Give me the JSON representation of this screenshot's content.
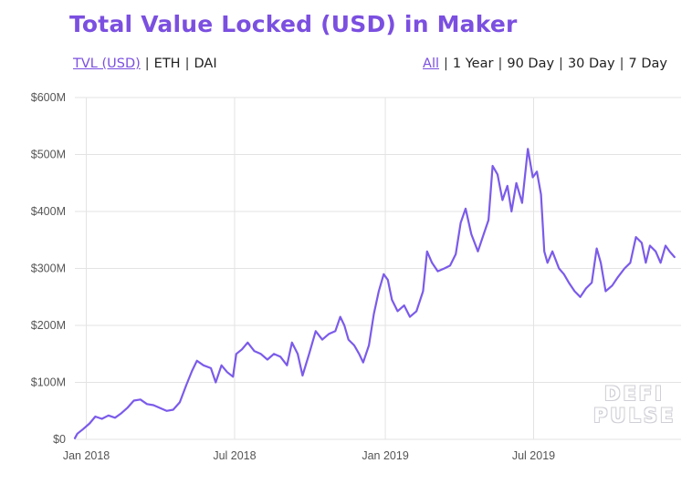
{
  "title": "Total Value Locked (USD) in Maker",
  "metric_toggles": [
    {
      "label": "TVL (USD)",
      "active": true
    },
    {
      "label": "ETH",
      "active": false
    },
    {
      "label": "DAI",
      "active": false
    }
  ],
  "range_toggles": [
    {
      "label": "All",
      "active": true
    },
    {
      "label": "1 Year",
      "active": false
    },
    {
      "label": "90 Day",
      "active": false
    },
    {
      "label": "30 Day",
      "active": false
    },
    {
      "label": "7 Day",
      "active": false
    }
  ],
  "separator": "|",
  "watermark": {
    "line1": "DEFI",
    "line2": "PULSE"
  },
  "colors": {
    "accent": "#7B4FE0",
    "line": "#7B5BEA",
    "grid": "#e3e3e3"
  },
  "chart_data": {
    "type": "line",
    "title": "Total Value Locked (USD) in Maker",
    "xlabel": "",
    "ylabel": "",
    "ylim": [
      0,
      600
    ],
    "xlim": [
      "2017-12-18",
      "2019-12-28"
    ],
    "grid": true,
    "y_ticks": [
      {
        "value": 0,
        "label": "$0"
      },
      {
        "value": 100,
        "label": "$100M"
      },
      {
        "value": 200,
        "label": "$200M"
      },
      {
        "value": 300,
        "label": "$300M"
      },
      {
        "value": 400,
        "label": "$400M"
      },
      {
        "value": 500,
        "label": "$500M"
      },
      {
        "value": 600,
        "label": "$600M"
      }
    ],
    "x_ticks": [
      {
        "value": "2018-01-01",
        "label": "Jan 2018"
      },
      {
        "value": "2018-07-01",
        "label": "Jul 2018"
      },
      {
        "value": "2019-01-01",
        "label": "Jan 2019"
      },
      {
        "value": "2019-07-01",
        "label": "Jul 2019"
      }
    ],
    "series": [
      {
        "name": "",
        "points": [
          [
            "2017-12-18",
            2
          ],
          [
            "2017-12-21",
            10
          ],
          [
            "2017-12-28",
            18
          ],
          [
            "2018-01-05",
            28
          ],
          [
            "2018-01-12",
            40
          ],
          [
            "2018-01-20",
            36
          ],
          [
            "2018-01-28",
            42
          ],
          [
            "2018-02-05",
            38
          ],
          [
            "2018-02-12",
            45
          ],
          [
            "2018-02-20",
            55
          ],
          [
            "2018-02-28",
            68
          ],
          [
            "2018-03-08",
            70
          ],
          [
            "2018-03-16",
            62
          ],
          [
            "2018-03-24",
            60
          ],
          [
            "2018-04-01",
            55
          ],
          [
            "2018-04-09",
            50
          ],
          [
            "2018-04-17",
            52
          ],
          [
            "2018-04-25",
            65
          ],
          [
            "2018-05-03",
            95
          ],
          [
            "2018-05-10",
            120
          ],
          [
            "2018-05-16",
            138
          ],
          [
            "2018-05-24",
            130
          ],
          [
            "2018-06-02",
            125
          ],
          [
            "2018-06-08",
            100
          ],
          [
            "2018-06-15",
            130
          ],
          [
            "2018-06-22",
            118
          ],
          [
            "2018-06-29",
            110
          ],
          [
            "2018-07-03",
            150
          ],
          [
            "2018-07-10",
            158
          ],
          [
            "2018-07-17",
            170
          ],
          [
            "2018-07-25",
            155
          ],
          [
            "2018-08-02",
            150
          ],
          [
            "2018-08-10",
            140
          ],
          [
            "2018-08-18",
            150
          ],
          [
            "2018-08-26",
            145
          ],
          [
            "2018-09-03",
            130
          ],
          [
            "2018-09-09",
            170
          ],
          [
            "2018-09-16",
            150
          ],
          [
            "2018-09-22",
            112
          ],
          [
            "2018-09-30",
            150
          ],
          [
            "2018-10-08",
            190
          ],
          [
            "2018-10-16",
            175
          ],
          [
            "2018-10-24",
            185
          ],
          [
            "2018-11-01",
            190
          ],
          [
            "2018-11-07",
            215
          ],
          [
            "2018-11-12",
            200
          ],
          [
            "2018-11-17",
            175
          ],
          [
            "2018-11-24",
            165
          ],
          [
            "2018-11-30",
            150
          ],
          [
            "2018-12-05",
            135
          ],
          [
            "2018-12-12",
            165
          ],
          [
            "2018-12-18",
            220
          ],
          [
            "2018-12-24",
            260
          ],
          [
            "2018-12-30",
            290
          ],
          [
            "2019-01-04",
            280
          ],
          [
            "2019-01-09",
            245
          ],
          [
            "2019-01-16",
            225
          ],
          [
            "2019-01-24",
            235
          ],
          [
            "2019-01-31",
            215
          ],
          [
            "2019-02-08",
            225
          ],
          [
            "2019-02-16",
            260
          ],
          [
            "2019-02-21",
            330
          ],
          [
            "2019-02-27",
            310
          ],
          [
            "2019-03-06",
            295
          ],
          [
            "2019-03-14",
            300
          ],
          [
            "2019-03-21",
            305
          ],
          [
            "2019-03-28",
            325
          ],
          [
            "2019-04-03",
            380
          ],
          [
            "2019-04-09",
            405
          ],
          [
            "2019-04-16",
            360
          ],
          [
            "2019-04-24",
            330
          ],
          [
            "2019-05-01",
            360
          ],
          [
            "2019-05-07",
            385
          ],
          [
            "2019-05-12",
            480
          ],
          [
            "2019-05-18",
            465
          ],
          [
            "2019-05-24",
            420
          ],
          [
            "2019-05-30",
            445
          ],
          [
            "2019-06-04",
            400
          ],
          [
            "2019-06-10",
            450
          ],
          [
            "2019-06-17",
            415
          ],
          [
            "2019-06-24",
            510
          ],
          [
            "2019-06-30",
            460
          ],
          [
            "2019-07-05",
            470
          ],
          [
            "2019-07-10",
            430
          ],
          [
            "2019-07-14",
            330
          ],
          [
            "2019-07-18",
            310
          ],
          [
            "2019-07-24",
            330
          ],
          [
            "2019-08-01",
            300
          ],
          [
            "2019-08-07",
            290
          ],
          [
            "2019-08-13",
            275
          ],
          [
            "2019-08-20",
            260
          ],
          [
            "2019-08-27",
            250
          ],
          [
            "2019-09-03",
            265
          ],
          [
            "2019-09-10",
            275
          ],
          [
            "2019-09-16",
            335
          ],
          [
            "2019-09-21",
            310
          ],
          [
            "2019-09-27",
            260
          ],
          [
            "2019-10-05",
            270
          ],
          [
            "2019-10-12",
            285
          ],
          [
            "2019-10-20",
            300
          ],
          [
            "2019-10-27",
            310
          ],
          [
            "2019-11-03",
            355
          ],
          [
            "2019-11-10",
            345
          ],
          [
            "2019-11-15",
            310
          ],
          [
            "2019-11-20",
            340
          ],
          [
            "2019-11-27",
            330
          ],
          [
            "2019-12-03",
            310
          ],
          [
            "2019-12-09",
            340
          ],
          [
            "2019-12-14",
            330
          ],
          [
            "2019-12-17",
            325
          ],
          [
            "2019-12-20",
            320
          ]
        ]
      }
    ]
  }
}
